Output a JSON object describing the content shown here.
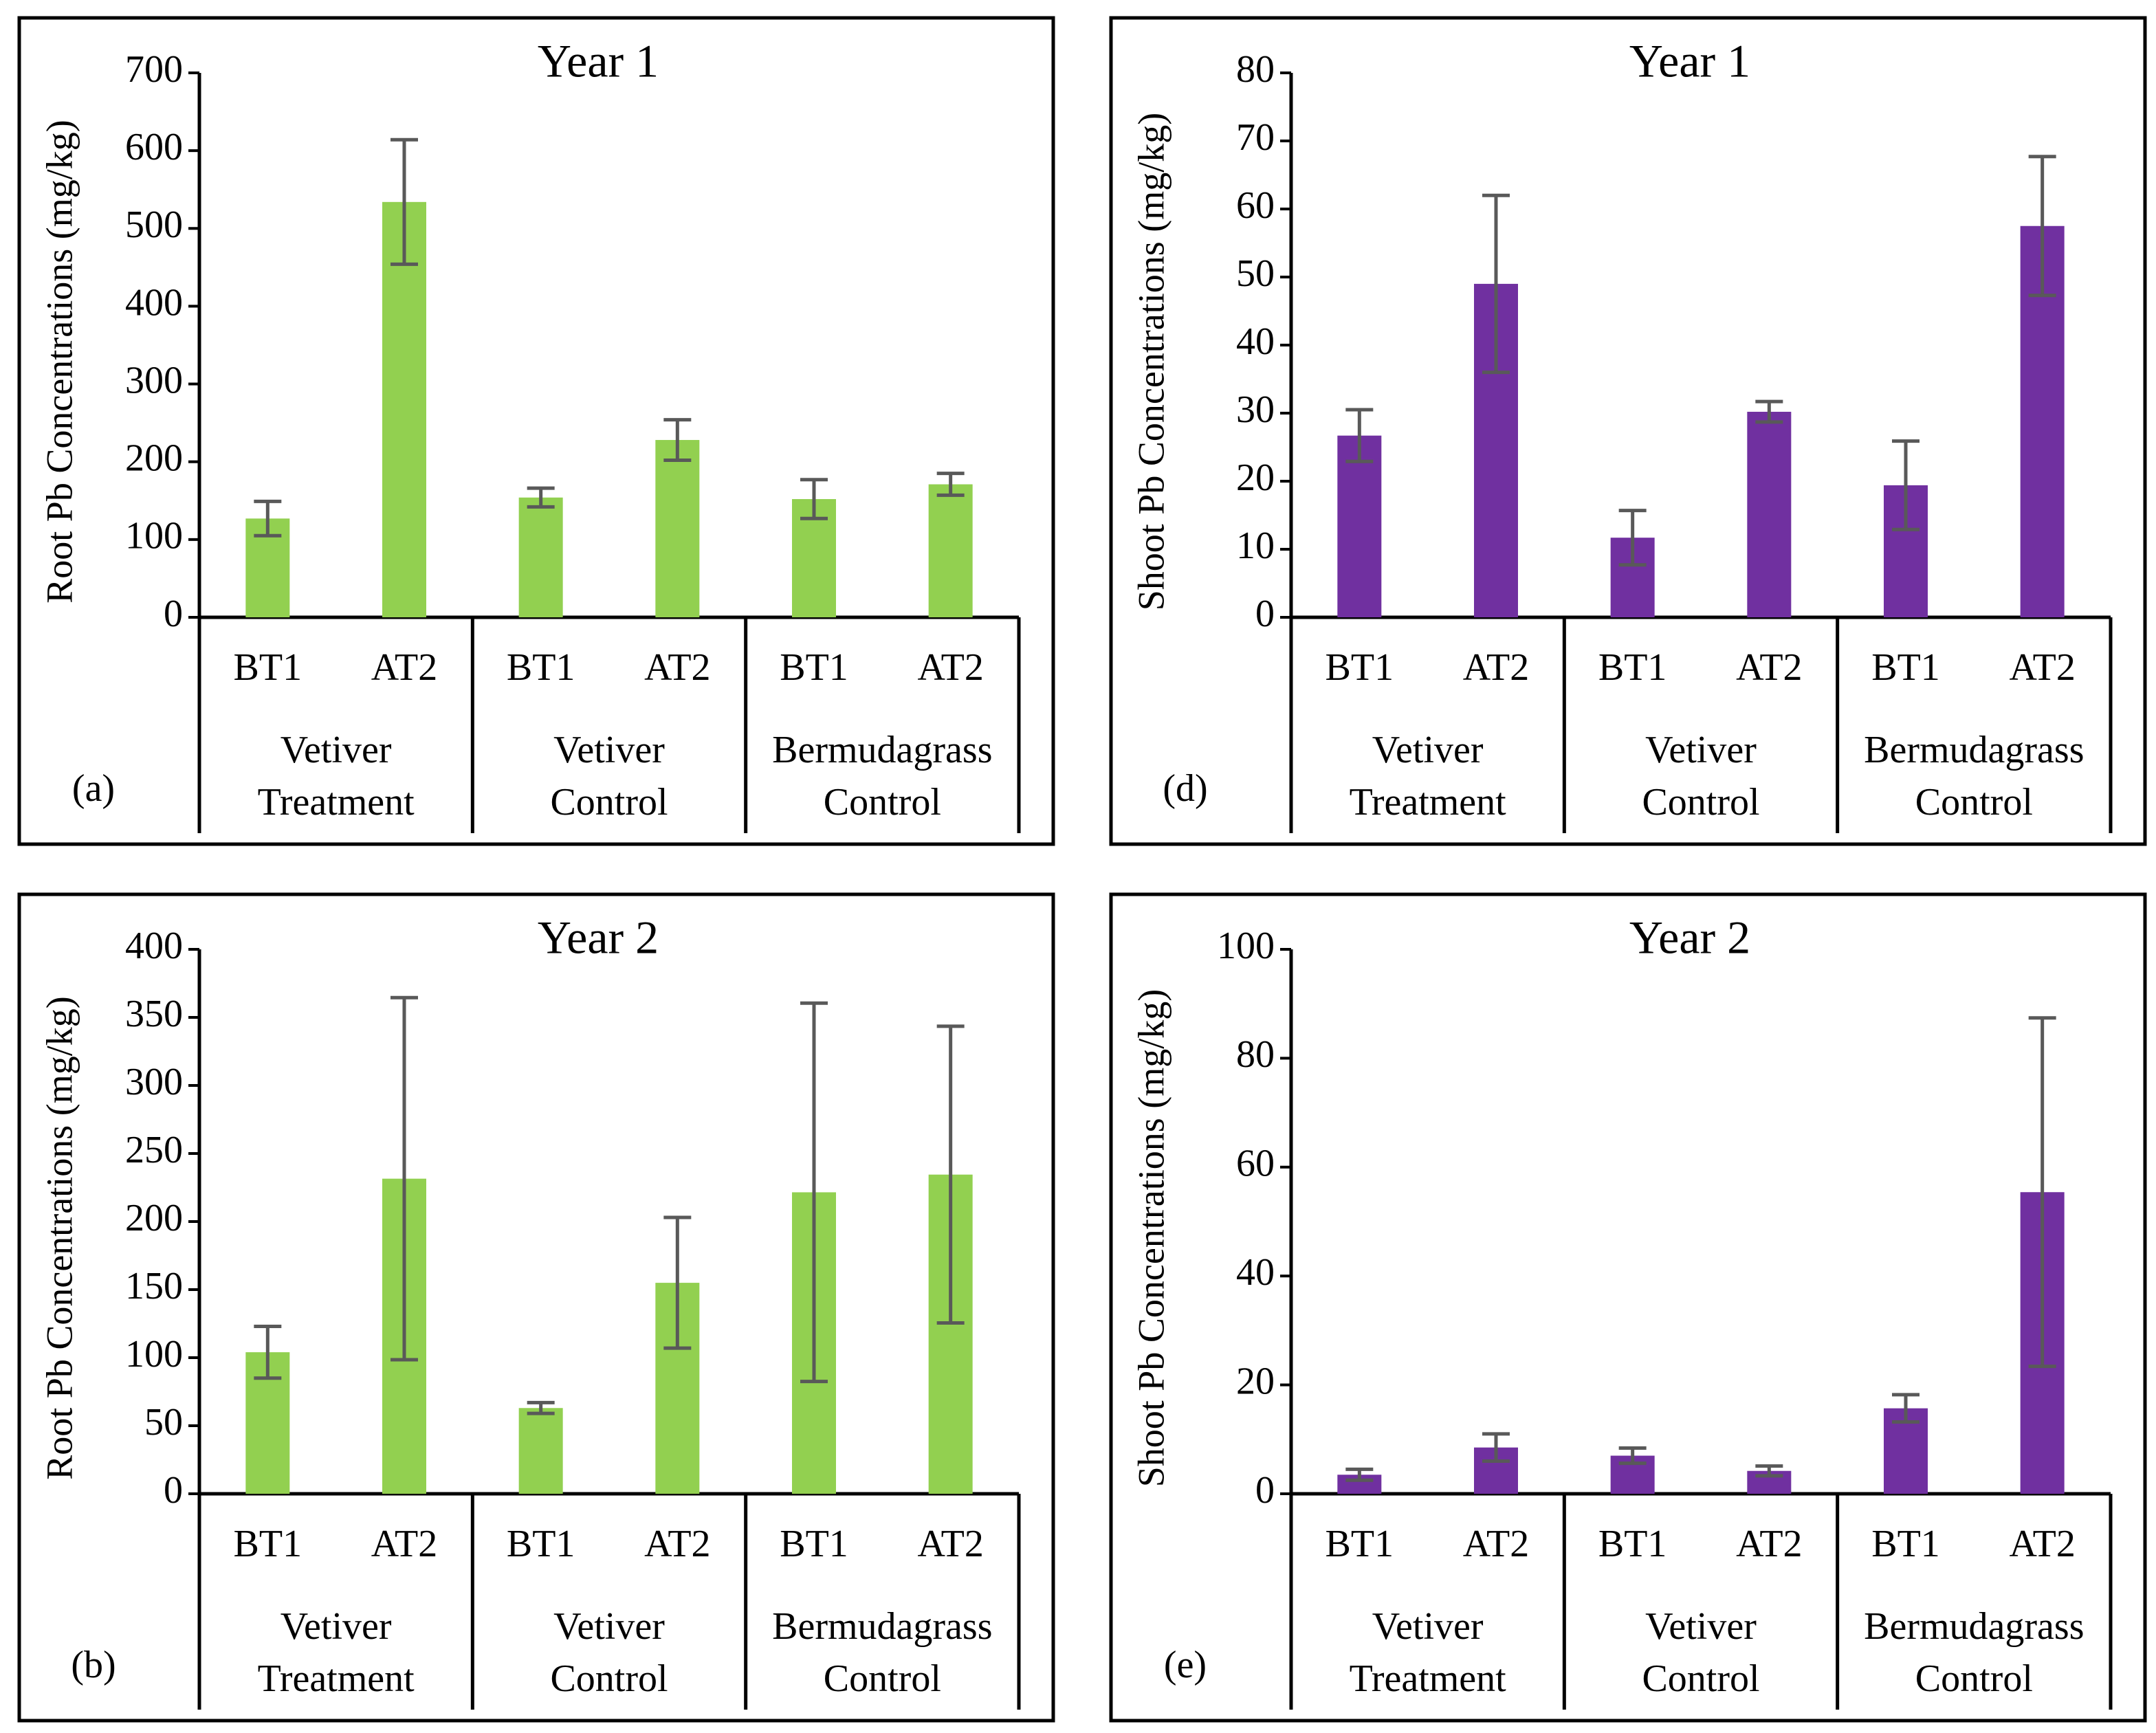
{
  "chart_data": [
    {
      "type": "bar",
      "title": "Year 1",
      "panel_label": "(a)",
      "y_label": "Root Pb Concentrations (mg/kg)",
      "categories": [
        "BT1",
        "AT2",
        "BT1",
        "AT2",
        "BT1",
        "AT2"
      ],
      "groups": [
        [
          "Vetiver",
          "Treatment"
        ],
        [
          "Vetiver",
          "Control"
        ],
        [
          "Bermudagrass",
          "Control"
        ]
      ],
      "values": [
        127,
        534,
        154,
        228,
        152,
        171
      ],
      "errors": [
        22,
        80,
        12,
        26,
        25,
        14
      ],
      "color": "#92d050",
      "ylim": [
        0,
        700
      ],
      "yticks": [
        0,
        100,
        200,
        300,
        400,
        500,
        600,
        700
      ]
    },
    {
      "type": "bar",
      "title": "Year 2",
      "panel_label": "(b)",
      "y_label": "Root Pb Concentrations (mg/kg)",
      "categories": [
        "BT1",
        "AT2",
        "BT1",
        "AT2",
        "BT1",
        "AT2"
      ],
      "groups": [
        [
          "Vetiver",
          "Treatment"
        ],
        [
          "Vetiver",
          "Control"
        ],
        [
          "Bermudagrass",
          "Control"
        ]
      ],
      "values": [
        104,
        231.5,
        63,
        155,
        221.5,
        234.5
      ],
      "errors": [
        19,
        133,
        4,
        48,
        139,
        109
      ],
      "color": "#92d050",
      "ylim": [
        0,
        400
      ],
      "yticks": [
        0,
        50,
        100,
        150,
        200,
        250,
        300,
        350,
        400
      ]
    },
    {
      "type": "bar",
      "title": "Year 1",
      "panel_label": "(d)",
      "y_label": "Shoot Pb Concentrations (mg/kg)",
      "categories": [
        "BT1",
        "AT2",
        "BT1",
        "AT2",
        "BT1",
        "AT2"
      ],
      "groups": [
        [
          "Vetiver",
          "Treatment"
        ],
        [
          "Vetiver",
          "Control"
        ],
        [
          "Bermudagrass",
          "Control"
        ]
      ],
      "values": [
        26.7,
        49,
        11.7,
        30.2,
        19.4,
        57.5
      ],
      "errors": [
        3.8,
        13,
        4,
        1.5,
        6.5,
        10.2
      ],
      "color": "#7030a0",
      "ylim": [
        0,
        80
      ],
      "yticks": [
        0,
        10,
        20,
        30,
        40,
        50,
        60,
        70,
        80
      ]
    },
    {
      "type": "bar",
      "title": "Year 2",
      "panel_label": "(e)",
      "y_label": "Shoot Pb Concentrations (mg/kg)",
      "categories": [
        "BT1",
        "AT2",
        "BT1",
        "AT2",
        "BT1",
        "AT2"
      ],
      "groups": [
        [
          "Vetiver",
          "Treatment"
        ],
        [
          "Vetiver",
          "Control"
        ],
        [
          "Bermudagrass",
          "Control"
        ]
      ],
      "values": [
        3.5,
        8.5,
        7,
        4.2,
        15.7,
        55.4
      ],
      "errors": [
        1,
        2.5,
        1.4,
        0.9,
        2.5,
        32
      ],
      "color": "#7030a0",
      "ylim": [
        0,
        100
      ],
      "yticks": [
        0,
        20,
        40,
        60,
        80,
        100
      ]
    }
  ]
}
